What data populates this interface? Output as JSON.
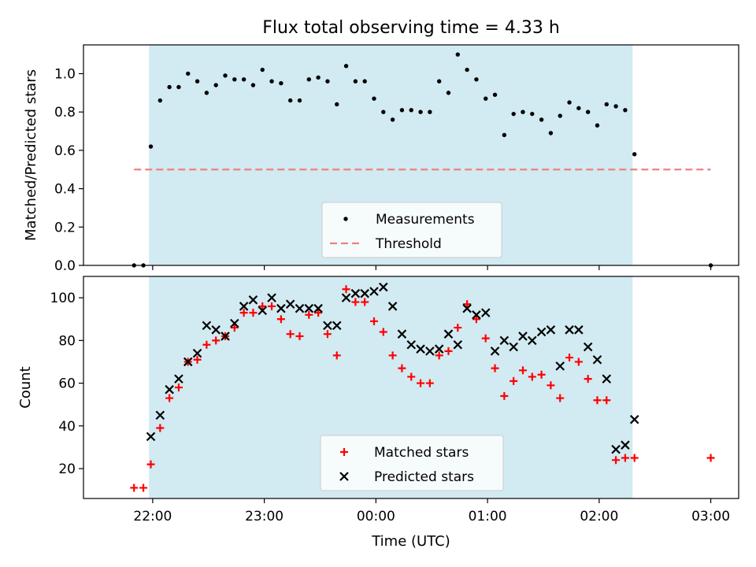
{
  "chart_data": [
    {
      "type": "scatter",
      "title": "Flux total observing time = 4.33 h",
      "xlabel": "",
      "ylabel": "Matched/Predicted stars",
      "x_range_hours": [
        -2.62,
        3.25
      ],
      "ylim": [
        0.0,
        1.15
      ],
      "yticks": [
        0.0,
        0.2,
        0.4,
        0.6,
        0.8,
        1.0
      ],
      "ytick_labels": [
        "0.0",
        "0.2",
        "0.4",
        "0.6",
        "0.8",
        "1.0"
      ],
      "observing_window": {
        "start": "21:58",
        "end": "02:18",
        "color": "#add8e6"
      },
      "legend": {
        "placement": "bottom-center",
        "entries": [
          "Measurements",
          "Threshold"
        ]
      },
      "threshold": {
        "name": "Threshold",
        "value": 0.5,
        "x_start": "21:50",
        "x_end": "03:00",
        "color": "#f08080"
      },
      "series": [
        {
          "name": "Measurements",
          "color": "#000000",
          "points": [
            [
              "21:50",
              0.0
            ],
            [
              "21:55",
              0.0
            ],
            [
              "21:59",
              0.62
            ],
            [
              "22:04",
              0.86
            ],
            [
              "22:09",
              0.93
            ],
            [
              "22:14",
              0.93
            ],
            [
              "22:19",
              1.0
            ],
            [
              "22:24",
              0.96
            ],
            [
              "22:29",
              0.9
            ],
            [
              "22:34",
              0.94
            ],
            [
              "22:39",
              0.99
            ],
            [
              "22:44",
              0.97
            ],
            [
              "22:49",
              0.97
            ],
            [
              "22:54",
              0.94
            ],
            [
              "22:59",
              1.02
            ],
            [
              "23:04",
              0.96
            ],
            [
              "23:09",
              0.95
            ],
            [
              "23:14",
              0.86
            ],
            [
              "23:19",
              0.86
            ],
            [
              "23:24",
              0.97
            ],
            [
              "23:29",
              0.98
            ],
            [
              "23:34",
              0.96
            ],
            [
              "23:39",
              0.84
            ],
            [
              "23:44",
              1.04
            ],
            [
              "23:49",
              0.96
            ],
            [
              "23:54",
              0.96
            ],
            [
              "23:59",
              0.87
            ],
            [
              "00:04",
              0.8
            ],
            [
              "00:09",
              0.76
            ],
            [
              "00:14",
              0.81
            ],
            [
              "00:19",
              0.81
            ],
            [
              "00:24",
              0.8
            ],
            [
              "00:29",
              0.8
            ],
            [
              "00:34",
              0.96
            ],
            [
              "00:39",
              0.9
            ],
            [
              "00:44",
              1.1
            ],
            [
              "00:49",
              1.02
            ],
            [
              "00:54",
              0.97
            ],
            [
              "00:59",
              0.87
            ],
            [
              "01:04",
              0.89
            ],
            [
              "01:09",
              0.68
            ],
            [
              "01:14",
              0.79
            ],
            [
              "01:19",
              0.8
            ],
            [
              "01:24",
              0.79
            ],
            [
              "01:29",
              0.76
            ],
            [
              "01:34",
              0.69
            ],
            [
              "01:39",
              0.78
            ],
            [
              "01:44",
              0.85
            ],
            [
              "01:49",
              0.82
            ],
            [
              "01:54",
              0.8
            ],
            [
              "01:59",
              0.73
            ],
            [
              "02:04",
              0.84
            ],
            [
              "02:09",
              0.83
            ],
            [
              "02:14",
              0.81
            ],
            [
              "02:19",
              0.58
            ],
            [
              "03:00",
              0.0
            ]
          ]
        }
      ]
    },
    {
      "type": "scatter",
      "title": "",
      "xlabel": "Time (UTC)",
      "ylabel": "Count",
      "x_range_hours": [
        -2.62,
        3.25
      ],
      "ylim": [
        6,
        110
      ],
      "yticks": [
        20,
        40,
        60,
        80,
        100
      ],
      "ytick_labels": [
        "20",
        "40",
        "60",
        "80",
        "100"
      ],
      "xticks": [
        "22:00",
        "23:00",
        "00:00",
        "01:00",
        "02:00",
        "03:00"
      ],
      "xtick_hours": [
        -2,
        -1,
        0,
        1,
        2,
        3
      ],
      "observing_window": {
        "start": "21:58",
        "end": "02:18",
        "color": "#add8e6"
      },
      "legend": {
        "placement": "bottom-center",
        "entries": [
          "Matched stars",
          "Predicted stars"
        ]
      },
      "series": [
        {
          "name": "Matched stars",
          "marker": "plus",
          "color": "#ff0000",
          "points": [
            [
              "21:50",
              11
            ],
            [
              "21:55",
              11
            ],
            [
              "21:59",
              22
            ],
            [
              "22:04",
              39
            ],
            [
              "22:09",
              53
            ],
            [
              "22:14",
              58
            ],
            [
              "22:19",
              70
            ],
            [
              "22:24",
              71
            ],
            [
              "22:29",
              78
            ],
            [
              "22:34",
              80
            ],
            [
              "22:39",
              82
            ],
            [
              "22:44",
              86
            ],
            [
              "22:49",
              93
            ],
            [
              "22:54",
              93
            ],
            [
              "22:59",
              96
            ],
            [
              "23:04",
              96
            ],
            [
              "23:09",
              90
            ],
            [
              "23:14",
              83
            ],
            [
              "23:19",
              82
            ],
            [
              "23:24",
              92
            ],
            [
              "23:29",
              93
            ],
            [
              "23:34",
              83
            ],
            [
              "23:39",
              73
            ],
            [
              "23:44",
              104
            ],
            [
              "23:49",
              98
            ],
            [
              "23:54",
              98
            ],
            [
              "23:59",
              89
            ],
            [
              "00:04",
              84
            ],
            [
              "00:09",
              73
            ],
            [
              "00:14",
              67
            ],
            [
              "00:19",
              63
            ],
            [
              "00:24",
              60
            ],
            [
              "00:29",
              60
            ],
            [
              "00:34",
              73
            ],
            [
              "00:39",
              75
            ],
            [
              "00:44",
              86
            ],
            [
              "00:49",
              97
            ],
            [
              "00:54",
              90
            ],
            [
              "00:59",
              81
            ],
            [
              "01:04",
              67
            ],
            [
              "01:09",
              54
            ],
            [
              "01:14",
              61
            ],
            [
              "01:19",
              66
            ],
            [
              "01:24",
              63
            ],
            [
              "01:29",
              64
            ],
            [
              "01:34",
              59
            ],
            [
              "01:39",
              53
            ],
            [
              "01:44",
              72
            ],
            [
              "01:49",
              70
            ],
            [
              "01:54",
              62
            ],
            [
              "01:59",
              52
            ],
            [
              "02:04",
              52
            ],
            [
              "02:09",
              24
            ],
            [
              "02:14",
              25
            ],
            [
              "02:19",
              25
            ],
            [
              "03:00",
              25
            ]
          ]
        },
        {
          "name": "Predicted stars",
          "marker": "x",
          "color": "#000000",
          "points": [
            [
              "21:59",
              35
            ],
            [
              "22:04",
              45
            ],
            [
              "22:09",
              57
            ],
            [
              "22:14",
              62
            ],
            [
              "22:19",
              70
            ],
            [
              "22:24",
              74
            ],
            [
              "22:29",
              87
            ],
            [
              "22:34",
              85
            ],
            [
              "22:39",
              82
            ],
            [
              "22:44",
              88
            ],
            [
              "22:49",
              96
            ],
            [
              "22:54",
              99
            ],
            [
              "22:59",
              94
            ],
            [
              "23:04",
              100
            ],
            [
              "23:09",
              95
            ],
            [
              "23:14",
              97
            ],
            [
              "23:19",
              95
            ],
            [
              "23:24",
              95
            ],
            [
              "23:29",
              95
            ],
            [
              "23:34",
              87
            ],
            [
              "23:39",
              87
            ],
            [
              "23:44",
              100
            ],
            [
              "23:49",
              102
            ],
            [
              "23:54",
              102
            ],
            [
              "23:59",
              103
            ],
            [
              "00:04",
              105
            ],
            [
              "00:09",
              96
            ],
            [
              "00:14",
              83
            ],
            [
              "00:19",
              78
            ],
            [
              "00:24",
              76
            ],
            [
              "00:29",
              75
            ],
            [
              "00:34",
              76
            ],
            [
              "00:39",
              83
            ],
            [
              "00:44",
              78
            ],
            [
              "00:49",
              95
            ],
            [
              "00:54",
              92
            ],
            [
              "00:59",
              93
            ],
            [
              "01:04",
              75
            ],
            [
              "01:09",
              80
            ],
            [
              "01:14",
              77
            ],
            [
              "01:19",
              82
            ],
            [
              "01:24",
              80
            ],
            [
              "01:29",
              84
            ],
            [
              "01:34",
              85
            ],
            [
              "01:39",
              68
            ],
            [
              "01:44",
              85
            ],
            [
              "01:49",
              85
            ],
            [
              "01:54",
              77
            ],
            [
              "01:59",
              71
            ],
            [
              "02:04",
              62
            ],
            [
              "02:09",
              29
            ],
            [
              "02:14",
              31
            ],
            [
              "02:19",
              43
            ]
          ]
        }
      ]
    }
  ]
}
